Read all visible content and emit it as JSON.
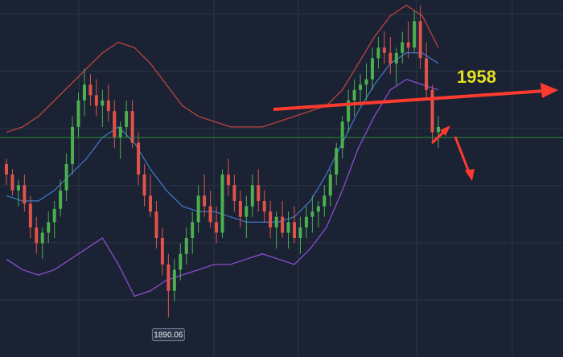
{
  "chart_data": {
    "type": "candlestick",
    "title": "",
    "xlabel": "",
    "ylabel": "",
    "ylim": [
      1875,
      2010
    ],
    "grid": true,
    "legend": "none",
    "horizontal_level": 1958,
    "horizontal_level_label": "1958",
    "low_price_label": "1890.06",
    "candles": [
      [
        1948,
        1950,
        1940,
        1944
      ],
      [
        1944,
        1946,
        1936,
        1938
      ],
      [
        1938,
        1942,
        1932,
        1940
      ],
      [
        1940,
        1944,
        1930,
        1933
      ],
      [
        1933,
        1936,
        1920,
        1924
      ],
      [
        1924,
        1928,
        1914,
        1918
      ],
      [
        1918,
        1924,
        1912,
        1922
      ],
      [
        1922,
        1930,
        1918,
        1926
      ],
      [
        1926,
        1934,
        1920,
        1931
      ],
      [
        1931,
        1942,
        1928,
        1938
      ],
      [
        1938,
        1952,
        1934,
        1948
      ],
      [
        1948,
        1966,
        1944,
        1962
      ],
      [
        1962,
        1975,
        1958,
        1972
      ],
      [
        1972,
        1984,
        1966,
        1978
      ],
      [
        1978,
        1982,
        1970,
        1974
      ],
      [
        1974,
        1980,
        1966,
        1970
      ],
      [
        1970,
        1976,
        1962,
        1972
      ],
      [
        1972,
        1978,
        1964,
        1968
      ],
      [
        1968,
        1972,
        1954,
        1958
      ],
      [
        1958,
        1964,
        1950,
        1962
      ],
      [
        1962,
        1972,
        1958,
        1968
      ],
      [
        1968,
        1972,
        1954,
        1956
      ],
      [
        1956,
        1960,
        1940,
        1944
      ],
      [
        1944,
        1948,
        1932,
        1936
      ],
      [
        1936,
        1944,
        1928,
        1930
      ],
      [
        1930,
        1934,
        1916,
        1920
      ],
      [
        1920,
        1924,
        1906,
        1910
      ],
      [
        1910,
        1914,
        1890,
        1900
      ],
      [
        1900,
        1912,
        1896,
        1908
      ],
      [
        1908,
        1918,
        1904,
        1914
      ],
      [
        1914,
        1924,
        1910,
        1920
      ],
      [
        1920,
        1930,
        1914,
        1926
      ],
      [
        1926,
        1940,
        1922,
        1936
      ],
      [
        1936,
        1944,
        1928,
        1932
      ],
      [
        1932,
        1938,
        1924,
        1926
      ],
      [
        1926,
        1932,
        1918,
        1922
      ],
      [
        1922,
        1946,
        1920,
        1944
      ],
      [
        1944,
        1950,
        1936,
        1940
      ],
      [
        1940,
        1944,
        1930,
        1934
      ],
      [
        1934,
        1938,
        1924,
        1928
      ],
      [
        1928,
        1936,
        1920,
        1932
      ],
      [
        1932,
        1944,
        1928,
        1940
      ],
      [
        1940,
        1946,
        1930,
        1934
      ],
      [
        1934,
        1938,
        1926,
        1930
      ],
      [
        1930,
        1934,
        1920,
        1924
      ],
      [
        1924,
        1930,
        1916,
        1928
      ],
      [
        1928,
        1934,
        1920,
        1922
      ],
      [
        1922,
        1930,
        1916,
        1926
      ],
      [
        1926,
        1932,
        1918,
        1920
      ],
      [
        1920,
        1928,
        1914,
        1924
      ],
      [
        1924,
        1932,
        1920,
        1928
      ],
      [
        1928,
        1936,
        1922,
        1930
      ],
      [
        1930,
        1934,
        1924,
        1932
      ],
      [
        1932,
        1940,
        1928,
        1936
      ],
      [
        1936,
        1946,
        1932,
        1944
      ],
      [
        1944,
        1956,
        1940,
        1954
      ],
      [
        1954,
        1966,
        1950,
        1964
      ],
      [
        1964,
        1976,
        1960,
        1972
      ],
      [
        1972,
        1980,
        1966,
        1976
      ],
      [
        1976,
        1982,
        1970,
        1978
      ],
      [
        1978,
        1986,
        1972,
        1980
      ],
      [
        1980,
        1992,
        1976,
        1988
      ],
      [
        1988,
        1996,
        1984,
        1992
      ],
      [
        1992,
        1998,
        1986,
        1990
      ],
      [
        1990,
        1996,
        1982,
        1986
      ],
      [
        1986,
        1992,
        1978,
        1990
      ],
      [
        1990,
        1998,
        1986,
        1994
      ],
      [
        1994,
        2002,
        1988,
        1992
      ],
      [
        1992,
        2006,
        1990,
        2002
      ],
      [
        2002,
        2008,
        1984,
        1988
      ],
      [
        1988,
        1994,
        1972,
        1976
      ],
      [
        1976,
        1978,
        1956,
        1960
      ],
      [
        1960,
        1966,
        1954,
        1962
      ]
    ],
    "bollinger_upper": [
      1960,
      1962,
      1966,
      1972,
      1978,
      1984,
      1990,
      1994,
      1992,
      1986,
      1978,
      1970,
      1966,
      1964,
      1962,
      1962,
      1962,
      1964,
      1966,
      1968,
      1970,
      1976,
      1986,
      1996,
      2004,
      2008,
      2004,
      1992
    ],
    "bollinger_middle": [
      1936,
      1934,
      1934,
      1938,
      1944,
      1950,
      1958,
      1962,
      1956,
      1946,
      1938,
      1932,
      1930,
      1930,
      1928,
      1926,
      1926,
      1926,
      1928,
      1934,
      1944,
      1956,
      1968,
      1978,
      1986,
      1990,
      1990,
      1986
    ],
    "bollinger_lower": [
      1912,
      1908,
      1906,
      1908,
      1912,
      1916,
      1920,
      1910,
      1898,
      1900,
      1904,
      1906,
      1908,
      1910,
      1910,
      1912,
      1914,
      1912,
      1910,
      1916,
      1924,
      1938,
      1954,
      1966,
      1976,
      1980,
      1978,
      1976
    ]
  }
}
